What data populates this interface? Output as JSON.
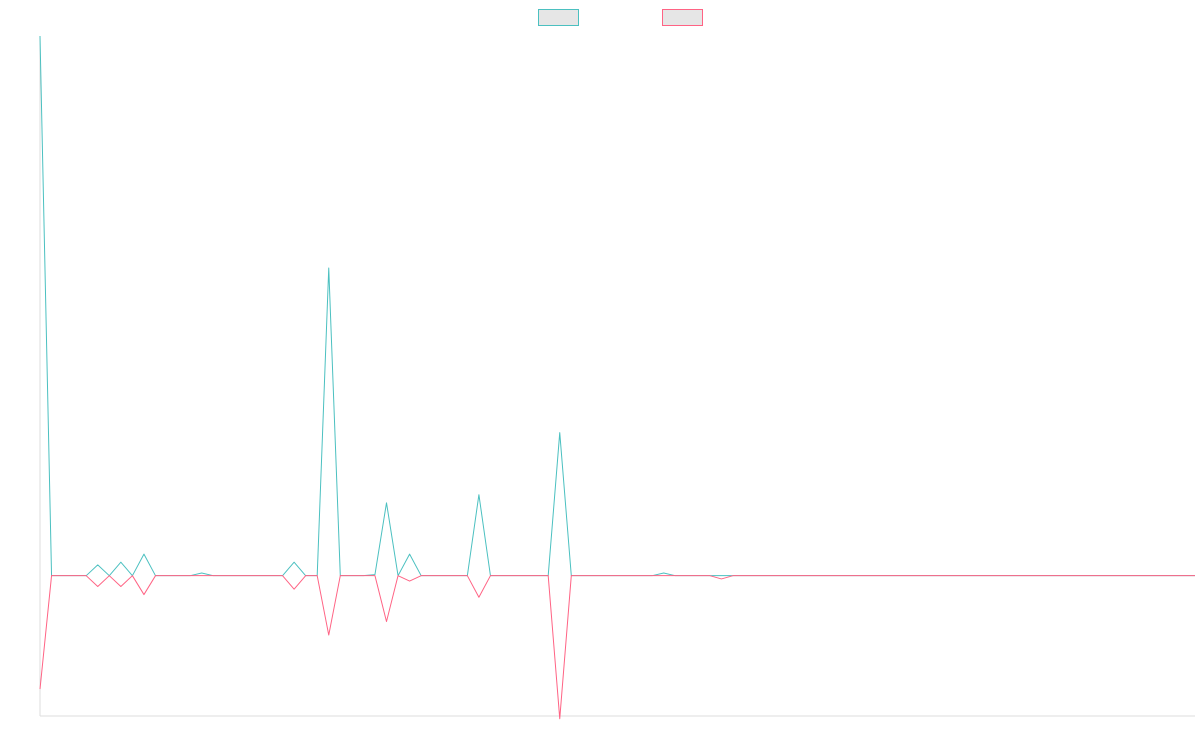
{
  "chart_data": {
    "type": "line",
    "legend": "top-center",
    "grid": false,
    "ylim": [
      -26,
      100
    ],
    "x": [
      0,
      1,
      2,
      3,
      4,
      5,
      6,
      7,
      8,
      9,
      10,
      11,
      12,
      13,
      14,
      15,
      16,
      17,
      18,
      19,
      20,
      21,
      22,
      23,
      24,
      25,
      26,
      27,
      28,
      29,
      30,
      31,
      32,
      33,
      34,
      35,
      36,
      37,
      38,
      39,
      40,
      41,
      42,
      43,
      44,
      45,
      46,
      47,
      48,
      49,
      50,
      51,
      52,
      53,
      54,
      55,
      56,
      57,
      58,
      59,
      60,
      61,
      62,
      63,
      64,
      65,
      66,
      67,
      68,
      69,
      70,
      71,
      72,
      73,
      74,
      75,
      76,
      77,
      78,
      79,
      80,
      81,
      82,
      83,
      84,
      85,
      86,
      87,
      88,
      89,
      90,
      91,
      92,
      93,
      94,
      95,
      96,
      97,
      98,
      99,
      100
    ],
    "series": [
      {
        "name": "",
        "color": "#4BC0C0",
        "values": [
          100,
          0,
          0,
          0,
          0,
          2,
          0,
          2.5,
          0,
          4,
          0,
          0,
          0,
          0,
          0.5,
          0,
          0,
          0,
          0,
          0,
          0,
          0,
          2.5,
          0,
          0,
          57,
          0,
          0,
          0,
          0.2,
          13.5,
          0,
          4,
          0,
          0,
          0,
          0,
          0,
          15,
          0,
          0,
          0,
          0,
          0,
          0,
          26.5,
          0,
          0,
          0,
          0,
          0,
          0,
          0,
          0,
          0.5,
          0,
          0,
          0,
          0,
          0,
          0,
          0,
          0,
          0,
          0,
          0,
          0,
          0,
          0,
          0,
          0,
          0,
          0,
          0,
          0,
          0,
          0,
          0,
          0,
          0,
          0,
          0,
          0,
          0,
          0,
          0,
          0,
          0,
          0,
          0,
          0,
          0,
          0,
          0,
          0,
          0,
          0,
          0,
          0,
          0,
          0
        ]
      },
      {
        "name": "",
        "color": "#FF6384",
        "values": [
          -21,
          0,
          0,
          0,
          0,
          -2,
          0,
          -2,
          0,
          -3.5,
          0,
          0,
          0,
          0,
          0,
          0,
          0,
          0,
          0,
          0,
          0,
          0,
          -2.5,
          0,
          0,
          -11,
          0,
          0,
          0,
          0,
          -8.5,
          0,
          -1,
          0,
          0,
          0,
          0,
          0,
          -4,
          0,
          0,
          0,
          0,
          0,
          0,
          -26.5,
          0,
          0,
          0,
          0,
          0,
          0,
          0,
          0,
          0,
          0,
          0,
          0,
          0,
          -0.6,
          0,
          0,
          0,
          0,
          0,
          0,
          0,
          0,
          0,
          0,
          0,
          0,
          0,
          0,
          0,
          0,
          0,
          0,
          0,
          0,
          0,
          0,
          0,
          0,
          0,
          0,
          0,
          0,
          0,
          0,
          0,
          0,
          0,
          0,
          0,
          0,
          0,
          0,
          0,
          0,
          0
        ]
      }
    ]
  }
}
